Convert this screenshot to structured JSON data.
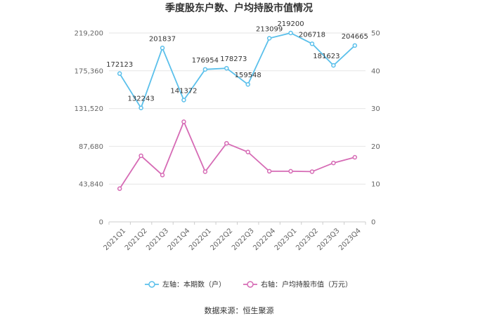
{
  "chart_data": {
    "type": "line",
    "title": "季度股东户数、户均持股市值情况",
    "categories": [
      "2021Q1",
      "2021Q2",
      "2021Q3",
      "2021Q4",
      "2022Q1",
      "2022Q2",
      "2022Q3",
      "2022Q4",
      "2023Q1",
      "2023Q2",
      "2023Q3",
      "2023Q4"
    ],
    "y_left": {
      "range": [
        0,
        219200
      ],
      "ticks": [
        "0",
        "43,840",
        "87,680",
        "131,520",
        "175,360",
        "219,200"
      ]
    },
    "y_right": {
      "range": [
        0,
        50
      ],
      "ticks": [
        "0",
        "10",
        "20",
        "30",
        "40",
        "50"
      ]
    },
    "series": [
      {
        "name": "左轴：本期数（户）",
        "axis": "left",
        "color": "#5bc0eb",
        "values": [
          172123,
          132243,
          201837,
          141372,
          176954,
          178273,
          159548,
          213099,
          219200,
          206718,
          181623,
          204665
        ],
        "labels": [
          "172123",
          "132243",
          "201837",
          "141372",
          "176954",
          "178273",
          "159548",
          "213099",
          "219200",
          "206718",
          "181623",
          "204665"
        ]
      },
      {
        "name": "右轴：户均持股市值（万元）",
        "axis": "right",
        "color": "#d66bb5",
        "values": [
          8.8,
          17.5,
          12.4,
          26.5,
          13.3,
          20.8,
          18.5,
          13.4,
          13.4,
          13.3,
          15.6,
          17.1
        ]
      }
    ],
    "grid": true,
    "legend_position": "bottom"
  },
  "footer": {
    "source": "数据来源：恒生聚源"
  }
}
